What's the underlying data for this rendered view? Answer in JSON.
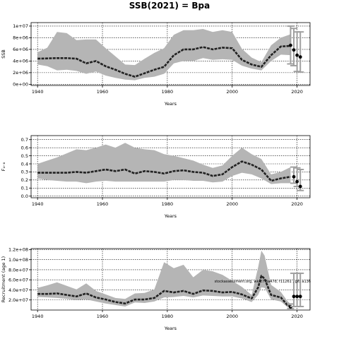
{
  "figure": {
    "title": "SSB(2021) = Bpa",
    "colors": {
      "band": "#b5b5b5",
      "line": "#222222",
      "point": "#000000",
      "errorbar": "#a0a0a0",
      "grid": "#000000"
    }
  },
  "chart_data": [
    {
      "type": "line",
      "ylabel": "SSB",
      "xlabel": "Years",
      "xlim": [
        1938,
        2024
      ],
      "ylim": [
        -200000,
        10600000
      ],
      "x_ticks": [
        1940,
        1960,
        1980,
        2000,
        2020
      ],
      "y_ticks": [
        0,
        2000000,
        4000000,
        6000000,
        8000000,
        10000000
      ],
      "y_tick_labels": [
        "0e+00",
        "2e+06",
        "4e+06",
        "6e+06",
        "8e+06",
        "1e+07"
      ],
      "grid": true,
      "series": [
        {
          "x": [
            1940,
            1943,
            1946,
            1949,
            1952,
            1955,
            1958,
            1961,
            1964,
            1967,
            1970,
            1973,
            1976,
            1979,
            1982,
            1985,
            1988,
            1991,
            1994,
            1997,
            2000,
            2003,
            2006,
            2009,
            2012,
            2015,
            2018
          ],
          "values": [
            4400000,
            4450000,
            4500000,
            4500000,
            4400000,
            3600000,
            4000000,
            3100000,
            2500000,
            1800000,
            1300000,
            1900000,
            2500000,
            3000000,
            5000000,
            6000000,
            6000000,
            6400000,
            6000000,
            6300000,
            6200000,
            4200000,
            3400000,
            3000000,
            5000000,
            6500000,
            6600000
          ],
          "lower": [
            3400000,
            3100000,
            2400000,
            2500000,
            2300000,
            1800000,
            2200000,
            1500000,
            1100000,
            800000,
            700000,
            1100000,
            1300000,
            1800000,
            3600000,
            4000000,
            4000000,
            4500000,
            4200000,
            4300000,
            4200000,
            3200000,
            2700000,
            2400000,
            4000000,
            5100000,
            5000000
          ],
          "upper": [
            5500000,
            6300000,
            9000000,
            8800000,
            7600000,
            7700000,
            7700000,
            6200000,
            4800000,
            3400000,
            3300000,
            4400000,
            5400000,
            6200000,
            8500000,
            9300000,
            9300000,
            9500000,
            9000000,
            9300000,
            9000000,
            6100000,
            4600000,
            3800000,
            6700000,
            8000000,
            8600000
          ]
        }
      ],
      "points": [
        {
          "x": 2018,
          "y": 6700000,
          "lo": 3500000,
          "hi": 10000000
        },
        {
          "x": 2019,
          "y": 5900000,
          "lo": 3200000,
          "hi": 9600000
        },
        {
          "x": 2020,
          "y": 5000000,
          "lo": 2200000,
          "hi": 9000000
        },
        {
          "x": 2021,
          "y": 4700000,
          "lo": 2100000,
          "hi": 9000000
        }
      ]
    },
    {
      "type": "line",
      "ylabel": "F₄₋₈",
      "xlabel": "Years",
      "xlim": [
        1938,
        2024
      ],
      "ylim": [
        -0.02,
        0.75
      ],
      "x_ticks": [
        1940,
        1960,
        1980,
        2000,
        2020
      ],
      "y_ticks": [
        0.0,
        0.1,
        0.2,
        0.3,
        0.4,
        0.5,
        0.6,
        0.7
      ],
      "y_tick_labels": [
        "0.0",
        "0.1",
        "0.2",
        "0.3",
        "0.4",
        "0.5",
        "0.6",
        "0.7"
      ],
      "grid": true,
      "series": [
        {
          "x": [
            1940,
            1943,
            1946,
            1949,
            1952,
            1955,
            1958,
            1961,
            1964,
            1967,
            1970,
            1973,
            1976,
            1979,
            1982,
            1985,
            1988,
            1991,
            1994,
            1997,
            2000,
            2003,
            2006,
            2009,
            2012,
            2015,
            2018
          ],
          "values": [
            0.29,
            0.29,
            0.29,
            0.29,
            0.3,
            0.29,
            0.31,
            0.33,
            0.31,
            0.33,
            0.28,
            0.31,
            0.3,
            0.28,
            0.31,
            0.32,
            0.3,
            0.29,
            0.25,
            0.27,
            0.36,
            0.43,
            0.39,
            0.33,
            0.19,
            0.22,
            0.24
          ],
          "lower": [
            0.22,
            0.2,
            0.19,
            0.18,
            0.18,
            0.16,
            0.18,
            0.19,
            0.18,
            0.18,
            0.18,
            0.18,
            0.18,
            0.18,
            0.2,
            0.2,
            0.19,
            0.19,
            0.17,
            0.18,
            0.25,
            0.29,
            0.27,
            0.22,
            0.15,
            0.16,
            0.16
          ],
          "upper": [
            0.4,
            0.44,
            0.48,
            0.53,
            0.58,
            0.57,
            0.6,
            0.64,
            0.6,
            0.66,
            0.6,
            0.58,
            0.57,
            0.52,
            0.5,
            0.47,
            0.44,
            0.39,
            0.35,
            0.38,
            0.5,
            0.6,
            0.52,
            0.46,
            0.27,
            0.3,
            0.36
          ]
        }
      ],
      "points": [
        {
          "x": 2019,
          "y": 0.24,
          "lo": 0.16,
          "hi": 0.36
        },
        {
          "x": 2020,
          "y": 0.18,
          "lo": 0.12,
          "hi": 0.35
        },
        {
          "x": 2021,
          "y": 0.12,
          "lo": 0.07,
          "hi": 0.33
        }
      ]
    },
    {
      "type": "line",
      "ylabel": "Recruitment (age 1)",
      "xlabel": "Years",
      "xlim": [
        1938,
        2024
      ],
      "ylim": [
        0,
        122000000
      ],
      "x_ticks": [
        1940,
        1960,
        1980,
        2000,
        2020
      ],
      "y_ticks": [
        20000000,
        40000000,
        60000000,
        80000000,
        100000000,
        120000000
      ],
      "y_tick_labels": [
        "2.0e+07",
        "4.0e+07",
        "6.0e+07",
        "8.0e+07",
        "1.0e+08",
        "1.2e+08"
      ],
      "grid": true,
      "annotation": "stockassessment.org, wk.27.3a47d, r11261 , git: a136",
      "series": [
        {
          "x": [
            1940,
            1943,
            1946,
            1949,
            1952,
            1955,
            1958,
            1961,
            1964,
            1967,
            1970,
            1973,
            1976,
            1979,
            1982,
            1985,
            1988,
            1991,
            1994,
            1997,
            2000,
            2003,
            2006,
            2008,
            2009,
            2010,
            2012,
            2015,
            2017,
            2018
          ],
          "values": [
            32000000,
            32000000,
            33000000,
            30000000,
            27000000,
            33000000,
            25000000,
            21000000,
            16000000,
            13000000,
            21000000,
            21000000,
            24000000,
            38000000,
            35000000,
            38000000,
            32000000,
            39000000,
            38000000,
            35000000,
            36000000,
            31000000,
            23000000,
            45000000,
            68000000,
            62000000,
            30000000,
            25000000,
            10000000,
            7000000
          ],
          "lower": [
            26000000,
            25000000,
            24000000,
            22000000,
            20000000,
            21000000,
            17000000,
            13000000,
            10000000,
            7000000,
            15000000,
            14000000,
            17000000,
            25000000,
            26000000,
            28000000,
            25000000,
            29000000,
            28000000,
            27000000,
            27000000,
            23000000,
            16000000,
            30000000,
            45000000,
            44000000,
            21000000,
            17000000,
            6000000,
            4000000
          ],
          "upper": [
            44000000,
            49000000,
            55000000,
            48000000,
            41000000,
            53000000,
            38000000,
            31000000,
            24000000,
            22000000,
            33000000,
            34000000,
            41000000,
            95000000,
            83000000,
            90000000,
            65000000,
            80000000,
            77000000,
            70000000,
            58000000,
            46000000,
            30000000,
            85000000,
            118000000,
            108000000,
            50000000,
            36000000,
            18000000,
            12000000
          ]
        }
      ],
      "points": [
        {
          "x": 2018,
          "y": 6000000,
          "lo": 3000000,
          "hi": 12000000
        },
        {
          "x": 2019,
          "y": 27000000,
          "lo": 7000000,
          "hi": 73000000
        },
        {
          "x": 2020,
          "y": 27000000,
          "lo": 7000000,
          "hi": 73000000
        },
        {
          "x": 2021,
          "y": 27000000,
          "lo": 7000000,
          "hi": 73000000
        }
      ]
    }
  ]
}
